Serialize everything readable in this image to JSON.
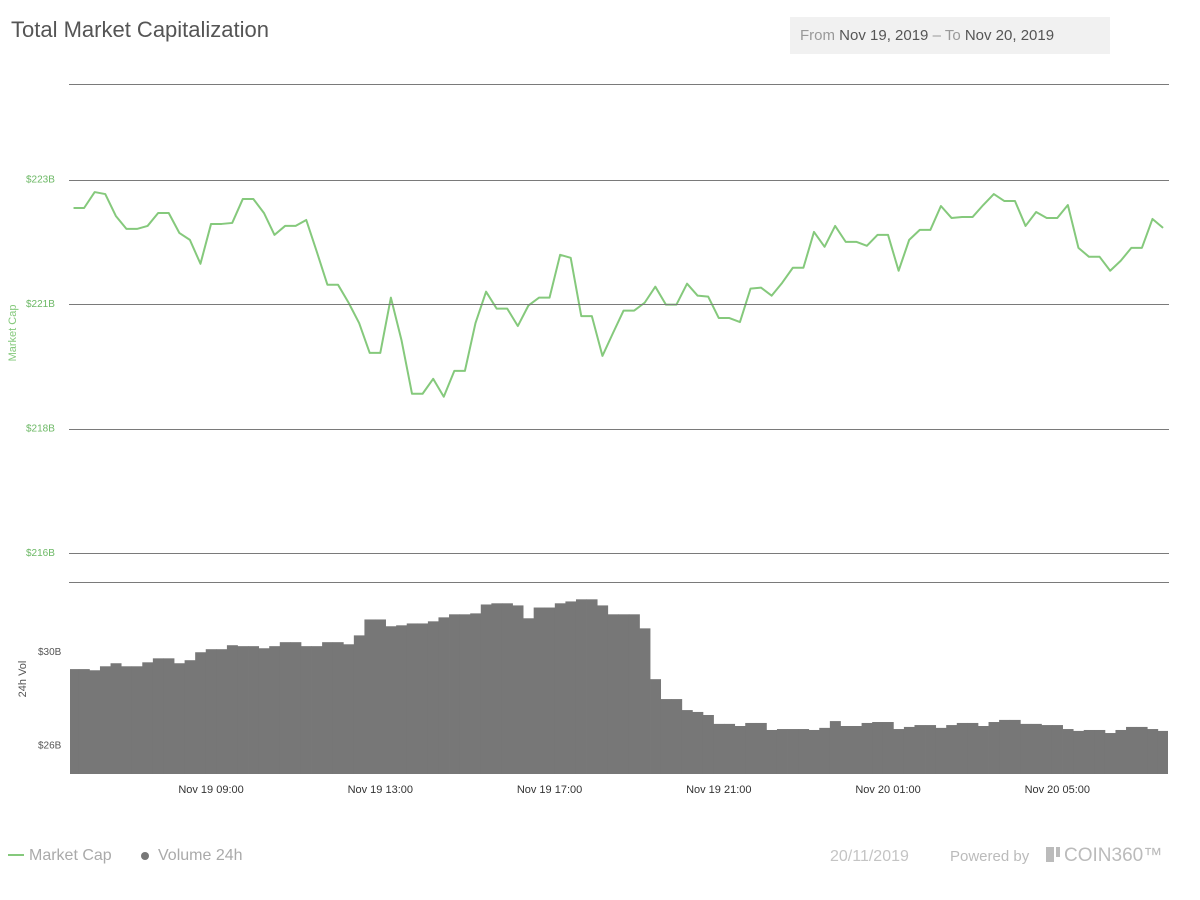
{
  "header": {
    "from_label": "From",
    "from": "Nov 19, 2019",
    "separator": "–",
    "to_label": "To",
    "to": "Nov 20, 2019"
  },
  "footer": {
    "date": "20/11/2019",
    "powered_by": "Powered by",
    "brand": "COIN360™"
  },
  "chart_data": {
    "type": "combo",
    "title": "Total Market Capitalization",
    "ylabel": "Market Cap",
    "y2label": "24h Vol",
    "x": [
      "Nov 19 05:45",
      "Nov 19 06:00",
      "Nov 19 06:15",
      "Nov 19 06:30",
      "Nov 19 06:45",
      "Nov 19 07:00",
      "Nov 19 07:15",
      "Nov 19 07:30",
      "Nov 19 07:45",
      "Nov 19 08:00",
      "Nov 19 08:15",
      "Nov 19 08:30",
      "Nov 19 08:45",
      "Nov 19 09:00",
      "Nov 19 09:15",
      "Nov 19 09:30",
      "Nov 19 09:45",
      "Nov 19 10:00",
      "Nov 19 10:15",
      "Nov 19 10:30",
      "Nov 19 10:45",
      "Nov 19 11:00",
      "Nov 19 11:15",
      "Nov 19 11:30",
      "Nov 19 11:45",
      "Nov 19 12:00",
      "Nov 19 12:15",
      "Nov 19 12:30",
      "Nov 19 12:45",
      "Nov 19 13:00",
      "Nov 19 13:15",
      "Nov 19 13:30",
      "Nov 19 13:45",
      "Nov 19 14:00",
      "Nov 19 14:15",
      "Nov 19 14:30",
      "Nov 19 14:45",
      "Nov 19 15:00",
      "Nov 19 15:15",
      "Nov 19 15:30",
      "Nov 19 15:45",
      "Nov 19 16:00",
      "Nov 19 16:15",
      "Nov 19 16:30",
      "Nov 19 16:45",
      "Nov 19 17:00",
      "Nov 19 17:15",
      "Nov 19 17:30",
      "Nov 19 17:45",
      "Nov 19 18:00",
      "Nov 19 18:15",
      "Nov 19 18:30",
      "Nov 19 18:45",
      "Nov 19 19:00",
      "Nov 19 19:15",
      "Nov 19 19:30",
      "Nov 19 19:45",
      "Nov 19 20:00",
      "Nov 19 20:15",
      "Nov 19 20:30",
      "Nov 19 20:45",
      "Nov 19 21:00",
      "Nov 19 21:15",
      "Nov 19 21:30",
      "Nov 19 21:45",
      "Nov 19 22:00",
      "Nov 19 22:15",
      "Nov 19 22:30",
      "Nov 19 22:45",
      "Nov 19 23:00",
      "Nov 19 23:15",
      "Nov 19 23:30",
      "Nov 19 23:45",
      "Nov 20 00:00",
      "Nov 20 00:15",
      "Nov 20 00:30",
      "Nov 20 00:45",
      "Nov 20 01:00",
      "Nov 20 01:15",
      "Nov 20 01:30",
      "Nov 20 01:45",
      "Nov 20 02:00",
      "Nov 20 02:15",
      "Nov 20 02:30",
      "Nov 20 02:45",
      "Nov 20 03:00",
      "Nov 20 03:15",
      "Nov 20 03:30",
      "Nov 20 03:45",
      "Nov 20 04:00",
      "Nov 20 04:15",
      "Nov 20 04:30",
      "Nov 20 04:45",
      "Nov 20 05:00",
      "Nov 20 05:15",
      "Nov 20 05:30",
      "Nov 20 05:45",
      "Nov 20 06:00",
      "Nov 20 06:15",
      "Nov 20 06:30",
      "Nov 20 06:45",
      "Nov 20 07:00",
      "Nov 20 07:15",
      "Nov 20 07:30"
    ],
    "xlim": [
      "Nov 19 05:40",
      "Nov 20 07:37"
    ],
    "xticks": [
      "Nov 19 09:00",
      "Nov 19 13:00",
      "Nov 19 17:00",
      "Nov 19 21:00",
      "Nov 20 01:00",
      "Nov 20 05:00"
    ],
    "ylim": [
      215.05,
      225.05
    ],
    "yticks": [
      {
        "value": 223.125,
        "label": "$223B"
      },
      {
        "value": 220.625,
        "label": "$221B"
      },
      {
        "value": 218.125,
        "label": "$218B"
      },
      {
        "value": 215.625,
        "label": "$216B"
      }
    ],
    "y2lim": [
      24.8,
      33.0
    ],
    "y2ticks": [
      {
        "value": 30,
        "label": "$30B"
      },
      {
        "value": 26,
        "label": "$26B"
      }
    ],
    "grid": true,
    "series": [
      {
        "name": "Market Cap",
        "type": "line",
        "color": "#85c97c",
        "values": [
          222.56,
          222.56,
          222.88,
          222.84,
          222.4,
          222.14,
          222.14,
          222.2,
          222.46,
          222.46,
          222.06,
          221.92,
          221.44,
          222.24,
          222.24,
          222.26,
          222.74,
          222.74,
          222.46,
          222.02,
          222.2,
          222.2,
          222.32,
          221.68,
          221.02,
          221.02,
          220.66,
          220.25,
          219.65,
          219.65,
          220.76,
          219.91,
          218.83,
          218.83,
          219.13,
          218.77,
          219.29,
          219.29,
          220.25,
          220.88,
          220.54,
          220.54,
          220.19,
          220.6,
          220.76,
          220.76,
          221.62,
          221.56,
          220.39,
          220.39,
          219.59,
          220.05,
          220.5,
          220.5,
          220.66,
          220.98,
          220.62,
          220.62,
          221.04,
          220.8,
          220.78,
          220.35,
          220.35,
          220.27,
          220.94,
          220.96,
          220.8,
          221.06,
          221.36,
          221.36,
          222.08,
          221.78,
          222.2,
          221.88,
          221.88,
          221.8,
          222.02,
          222.02,
          221.3,
          221.92,
          222.12,
          222.12,
          222.6,
          222.36,
          222.38,
          222.38,
          222.62,
          222.84,
          222.7,
          222.7,
          222.2,
          222.48,
          222.36,
          222.36,
          222.62,
          221.76,
          221.58,
          221.58,
          221.3,
          221.5,
          221.76,
          221.76,
          222.34,
          222.16
        ]
      },
      {
        "name": "Volume 24h",
        "type": "bar",
        "axis": "y2",
        "color": "#777777",
        "values": [
          29.28,
          29.28,
          29.23,
          29.4,
          29.53,
          29.4,
          29.4,
          29.57,
          29.74,
          29.74,
          29.53,
          29.66,
          30.0,
          30.13,
          30.13,
          30.3,
          30.26,
          30.26,
          30.17,
          30.26,
          30.43,
          30.43,
          30.26,
          30.26,
          30.43,
          30.43,
          30.34,
          30.72,
          31.4,
          31.4,
          31.11,
          31.15,
          31.23,
          31.23,
          31.32,
          31.49,
          31.62,
          31.62,
          31.66,
          32.04,
          32.09,
          32.09,
          32.0,
          31.45,
          31.91,
          31.91,
          32.09,
          32.17,
          32.26,
          32.26,
          32.0,
          31.62,
          31.62,
          31.62,
          31.02,
          28.85,
          28.0,
          28.0,
          27.53,
          27.45,
          27.32,
          26.94,
          26.94,
          26.85,
          26.98,
          26.98,
          26.68,
          26.72,
          26.72,
          26.72,
          26.68,
          26.77,
          27.06,
          26.85,
          26.85,
          26.98,
          27.02,
          27.02,
          26.72,
          26.81,
          26.89,
          26.89,
          26.77,
          26.89,
          26.98,
          26.98,
          26.85,
          27.02,
          27.11,
          27.11,
          26.94,
          26.94,
          26.89,
          26.89,
          26.72,
          26.64,
          26.68,
          26.68,
          26.55,
          26.68,
          26.81,
          26.81,
          26.72,
          26.64
        ]
      }
    ]
  }
}
